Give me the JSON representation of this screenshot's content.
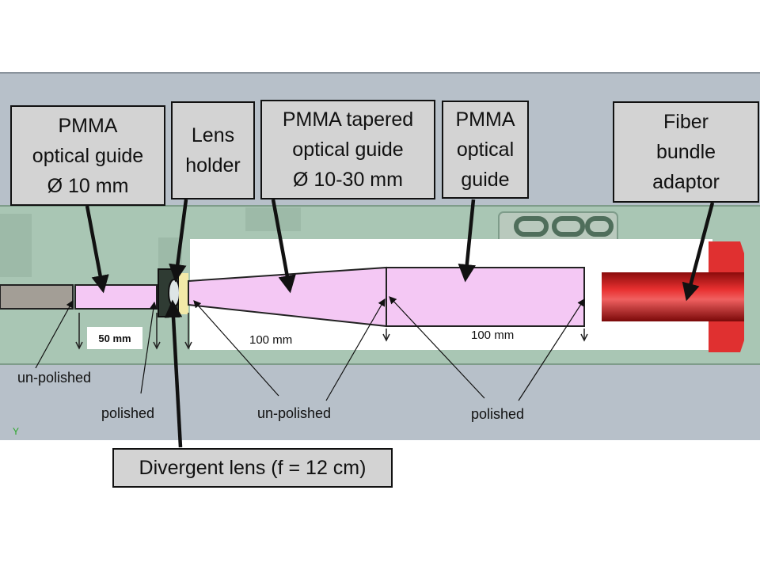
{
  "callouts": {
    "pmma_10": "PMMA\noptical  guide\nØ 10 mm",
    "lens_holder": "Lens\nholder",
    "tapered": "PMMA tapered\noptical guide\nØ 10-30 mm",
    "pmma_guide": "PMMA\noptical\nguide",
    "fiber_adaptor": "Fiber\nbundle\nadaptor",
    "divergent_lens": "Divergent lens (f = 12 cm)"
  },
  "surface_labels": {
    "unpolished_left": "un-polished",
    "polished_left": "polished",
    "unpolished_center": "un-polished",
    "polished_right": "polished"
  },
  "dimensions": {
    "d50": "50 mm",
    "d100a": "100 mm",
    "d100b": "100 mm"
  },
  "axis_marker": "Y",
  "colors": {
    "cad_background": "#b7c0c9",
    "housing_green": "#a9c6b4",
    "pmma_pink": "#f4c8f4",
    "adaptor_red": "#d81818",
    "callout_fill": "#d3d3d3"
  }
}
